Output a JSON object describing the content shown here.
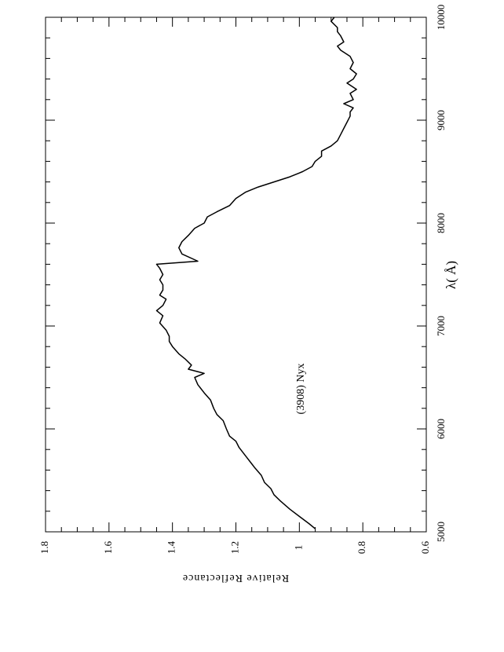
{
  "chart_data": {
    "type": "line",
    "x_label": "λ( Å)",
    "y_label": "Relative Reflectance",
    "annotation": "(3908) Nyx",
    "rotated": true,
    "xlim": [
      5000,
      10000
    ],
    "xticks": [
      5000,
      6000,
      7000,
      8000,
      9000,
      10000
    ],
    "xminor_ticks": [
      5200,
      5400,
      5600,
      5800,
      6200,
      6400,
      6600,
      6800,
      7200,
      7400,
      7600,
      7800,
      8200,
      8400,
      8600,
      8800,
      9200,
      9400,
      9600,
      9800
    ],
    "ylim": [
      0.6,
      1.8
    ],
    "yticks": [
      0.6,
      0.8,
      1,
      1.2,
      1.4,
      1.6,
      1.8
    ],
    "yminor_ticks": [
      0.65,
      0.7,
      0.75,
      0.85,
      0.9,
      0.95,
      1.05,
      1.1,
      1.15,
      1.25,
      1.3,
      1.35,
      1.45,
      1.5,
      1.55,
      1.65,
      1.7,
      1.75
    ],
    "series": [
      {
        "name": "(3908) Nyx",
        "color": "#000000",
        "x": [
          5030,
          5080,
          5150,
          5220,
          5300,
          5360,
          5420,
          5480,
          5550,
          5620,
          5660,
          5740,
          5820,
          5880,
          5930,
          6000,
          6080,
          6140,
          6200,
          6280,
          6350,
          6430,
          6500,
          6540,
          6580,
          6620,
          6680,
          6730,
          6800,
          6850,
          6900,
          6960,
          7030,
          7100,
          7150,
          7200,
          7260,
          7300,
          7350,
          7400,
          7450,
          7500,
          7560,
          7600,
          7630,
          7700,
          7760,
          7820,
          7880,
          7950,
          8000,
          8060,
          8110,
          8170,
          8240,
          8300,
          8350,
          8400,
          8450,
          8500,
          8550,
          8600,
          8650,
          8700,
          8750,
          8800,
          8860,
          8920,
          8980,
          9040,
          9080,
          9120,
          9160,
          9200,
          9260,
          9300,
          9360,
          9400,
          9450,
          9500,
          9560,
          9620,
          9680,
          9720,
          9760,
          9820,
          9860,
          9900,
          9960,
          10000
        ],
        "values": [
          0.95,
          0.97,
          1.0,
          1.03,
          1.06,
          1.08,
          1.09,
          1.11,
          1.12,
          1.14,
          1.15,
          1.17,
          1.19,
          1.2,
          1.22,
          1.23,
          1.24,
          1.26,
          1.27,
          1.28,
          1.3,
          1.32,
          1.33,
          1.3,
          1.35,
          1.34,
          1.36,
          1.38,
          1.4,
          1.41,
          1.41,
          1.42,
          1.44,
          1.43,
          1.45,
          1.43,
          1.42,
          1.44,
          1.43,
          1.43,
          1.44,
          1.43,
          1.44,
          1.45,
          1.32,
          1.37,
          1.38,
          1.37,
          1.35,
          1.33,
          1.3,
          1.29,
          1.26,
          1.22,
          1.2,
          1.17,
          1.13,
          1.08,
          1.03,
          0.99,
          0.96,
          0.95,
          0.93,
          0.93,
          0.9,
          0.88,
          0.87,
          0.86,
          0.85,
          0.84,
          0.84,
          0.83,
          0.86,
          0.83,
          0.84,
          0.82,
          0.85,
          0.83,
          0.82,
          0.84,
          0.83,
          0.84,
          0.87,
          0.88,
          0.86,
          0.87,
          0.88,
          0.88,
          0.9,
          0.89
        ]
      }
    ]
  }
}
